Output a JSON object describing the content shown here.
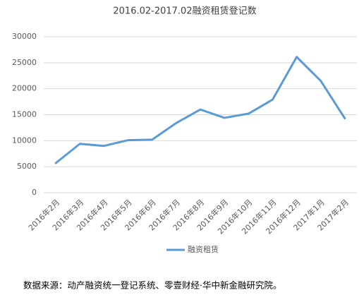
{
  "chart_data": {
    "type": "line",
    "title": "2016.02-2017.02融资租赁登记数",
    "categories": [
      "2016年2月",
      "2016年3月",
      "2016年4月",
      "2016年5月",
      "2016年6月",
      "2016年7月",
      "2016年8月",
      "2016年9月",
      "2016年10月",
      "2016年11月",
      "2016年12月",
      "2017年1月",
      "2017年2月"
    ],
    "series": [
      {
        "name": "融资租赁",
        "color": "#5b9bd5",
        "values": [
          5700,
          9400,
          9000,
          10100,
          10200,
          13400,
          16000,
          14400,
          15200,
          17900,
          26100,
          21500,
          14300
        ]
      }
    ],
    "ylim": [
      0,
      30000
    ],
    "yticks": [
      0,
      5000,
      10000,
      15000,
      20000,
      25000,
      30000
    ],
    "grid": true,
    "legend": "bottom",
    "note": "数据来源：动产融资统一登记系统、零壹财经·华中新金融研究院。"
  }
}
